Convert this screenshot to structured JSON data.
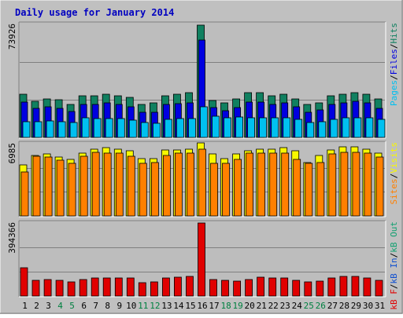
{
  "colors": {
    "background": "#c0c0c0",
    "panel": "#bdbdbd",
    "hits": "#108060",
    "files": "#0000e0",
    "pages": "#00c0f0",
    "visits": "#f8f800",
    "sites": "#ff8000",
    "kbin": "#1050d0",
    "kbf": "#e00000",
    "kbout": "#10a070",
    "title": "#0000c0",
    "weekend": "#008040",
    "weekday": "#000000",
    "slash": "#000000"
  },
  "chart_data": {
    "type": "bar",
    "title": "Daily usage for January 2014",
    "categories": [
      "1",
      "2",
      "3",
      "4",
      "5",
      "6",
      "7",
      "8",
      "9",
      "10",
      "11",
      "12",
      "13",
      "14",
      "15",
      "16",
      "17",
      "18",
      "19",
      "20",
      "21",
      "22",
      "23",
      "24",
      "25",
      "26",
      "27",
      "28",
      "29",
      "30",
      "31"
    ],
    "weekend_days": [
      "4",
      "5",
      "11",
      "12",
      "18",
      "19",
      "25",
      "26"
    ],
    "panels": [
      {
        "name": "hits-files-pages",
        "max_label": "73926",
        "ymax": 73926,
        "legend": [
          {
            "text": "Pages",
            "color_key": "pages"
          },
          {
            "text": "Files",
            "color_key": "files"
          },
          {
            "text": "Hits",
            "color_key": "hits"
          }
        ],
        "series": [
          {
            "name": "Hits",
            "color_key": "hits",
            "values": [
              28000,
              23500,
              25000,
              24500,
              21500,
              27000,
              27000,
              28000,
              27000,
              26000,
              21500,
              22500,
              27000,
              28000,
              29000,
              73000,
              24000,
              22500,
              25000,
              29000,
              29000,
              27000,
              28000,
              25000,
              21500,
              22500,
              27000,
              28000,
              29000,
              28000,
              25000
            ]
          },
          {
            "name": "Files",
            "color_key": "files",
            "values": [
              23000,
              19000,
              20000,
              19000,
              17000,
              21500,
              21500,
              22500,
              21500,
              20000,
              16500,
              16500,
              21500,
              22000,
              22500,
              63000,
              19500,
              17500,
              19500,
              23000,
              23000,
              21500,
              22500,
              20000,
              16500,
              18000,
              21500,
              22500,
              23500,
              22500,
              19000
            ]
          },
          {
            "name": "Pages",
            "color_key": "pages",
            "values": [
              10000,
              10000,
              10500,
              10000,
              9500,
              12500,
              12000,
              12000,
              12000,
              11000,
              9500,
              9000,
              11500,
              12000,
              12000,
              20000,
              14000,
              12500,
              13500,
              13000,
              13000,
              13000,
              12500,
              11500,
              9500,
              10000,
              11500,
              12500,
              13000,
              12500,
              11500
            ]
          }
        ]
      },
      {
        "name": "visits-sites",
        "max_label": "6985",
        "ymax": 6985,
        "legend": [
          {
            "text": "Sites",
            "color_key": "sites"
          },
          {
            "text": "Visits",
            "color_key": "visits"
          }
        ],
        "series": [
          {
            "name": "Visits",
            "color_key": "visits",
            "values": [
              4900,
              5800,
              5900,
              5600,
              5400,
              6000,
              6400,
              6500,
              6400,
              6200,
              5500,
              5500,
              6300,
              6300,
              6400,
              7000,
              5900,
              5500,
              5900,
              6200,
              6400,
              6400,
              6500,
              6200,
              5100,
              5800,
              6300,
              6600,
              6600,
              6400,
              6000
            ]
          },
          {
            "name": "Sites",
            "color_key": "sites",
            "values": [
              4200,
              5700,
              5600,
              5300,
              5000,
              5700,
              6100,
              6000,
              6000,
              5700,
              5000,
              5100,
              5800,
              6000,
              6000,
              6400,
              5000,
              5000,
              5400,
              6000,
              6000,
              6000,
              6000,
              5400,
              5000,
              5100,
              5900,
              6100,
              6100,
              6000,
              5600
            ]
          }
        ]
      },
      {
        "name": "kbf-kbin-kbout",
        "max_label": "394366",
        "ymax": 394366,
        "legend": [
          {
            "text": "kB F",
            "color_key": "kbf"
          },
          {
            "text": "kB In",
            "color_key": "kbin"
          },
          {
            "text": "kB Out",
            "color_key": "kbout"
          }
        ],
        "series": [
          {
            "name": "kB F",
            "color_key": "kbf",
            "values": [
              150000,
              85000,
              88000,
              85000,
              75000,
              90000,
              98000,
              95000,
              98000,
              95000,
              70000,
              75000,
              95000,
              100000,
              105000,
              390000,
              90000,
              85000,
              80000,
              90000,
              100000,
              98000,
              95000,
              85000,
              75000,
              80000,
              95000,
              105000,
              103000,
              98000,
              85000
            ]
          }
        ]
      }
    ]
  }
}
